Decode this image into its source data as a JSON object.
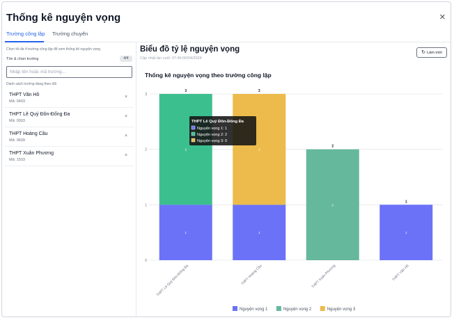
{
  "modal": {
    "title": "Thống kê nguyện vọng",
    "close": "×"
  },
  "tabs": [
    {
      "label": "Trường công lập",
      "active": true
    },
    {
      "label": "Trường chuyên",
      "active": false
    }
  ],
  "left_panel": {
    "hint": "Chọn tối đa 4 trường công lập để xem thống kê nguyện vọng",
    "found_label": "Tìm & chọn trường",
    "count": "4/4",
    "search_placeholder": "Nhập tên hoặc mã trường...",
    "selected_label": "Danh sách trường đang theo dõi",
    "schools": [
      {
        "name": "THPT Văn Hồ",
        "code": "Mã: 0403"
      },
      {
        "name": "THPT Lê Quý Đôn-Đống Đa",
        "code": "Mã: 0003"
      },
      {
        "name": "THPT Hoàng Cầu",
        "code": "Mã: 0609"
      },
      {
        "name": "THPT Xuân Phương",
        "code": "Mã: 1503"
      }
    ],
    "remove_glyph": "×"
  },
  "header": {
    "title": "Biểu đồ tỷ lệ nguyện vọng",
    "updated": "Cập nhật lần cuối: 07:46:00/04/2024",
    "refresh_label": "Làm mới",
    "refresh_icon": "↻"
  },
  "chart_data": {
    "type": "bar",
    "stacked": true,
    "title": "Thống kê nguyện vọng theo trường công lập",
    "categories": [
      "THPT Lê Quý Đôn-Đống Đa",
      "THPT Hoàng Cầu",
      "THPT Xuân Phương",
      "THPT Văn Hồ"
    ],
    "series": [
      {
        "name": "Nguyện vọng 1",
        "color": "#6b72f8",
        "values": [
          1,
          1,
          0,
          1
        ]
      },
      {
        "name": "Nguyện vọng 2",
        "color": "#65b89c",
        "values": [
          2,
          0,
          2,
          0
        ]
      },
      {
        "name": "Nguyện vọng 3",
        "color": "#ecbb4b",
        "values": [
          0,
          2,
          0,
          0
        ]
      }
    ],
    "series_override_colors": [
      "#3cbf8f",
      "#ecbb4b"
    ],
    "totals": [
      3,
      3,
      2,
      1
    ],
    "ylim": [
      0,
      3
    ],
    "yticks": [
      0,
      1,
      2,
      3
    ],
    "grid": true,
    "legend": "bottom",
    "tooltip": {
      "category_index": 0,
      "title": "THPT Lê Quý Đôn-Đống Đa",
      "lines": [
        "Nguyện vọng 1: 1",
        "Nguyện vọng 2: 2",
        "Nguyện vọng 3: 0"
      ]
    }
  }
}
